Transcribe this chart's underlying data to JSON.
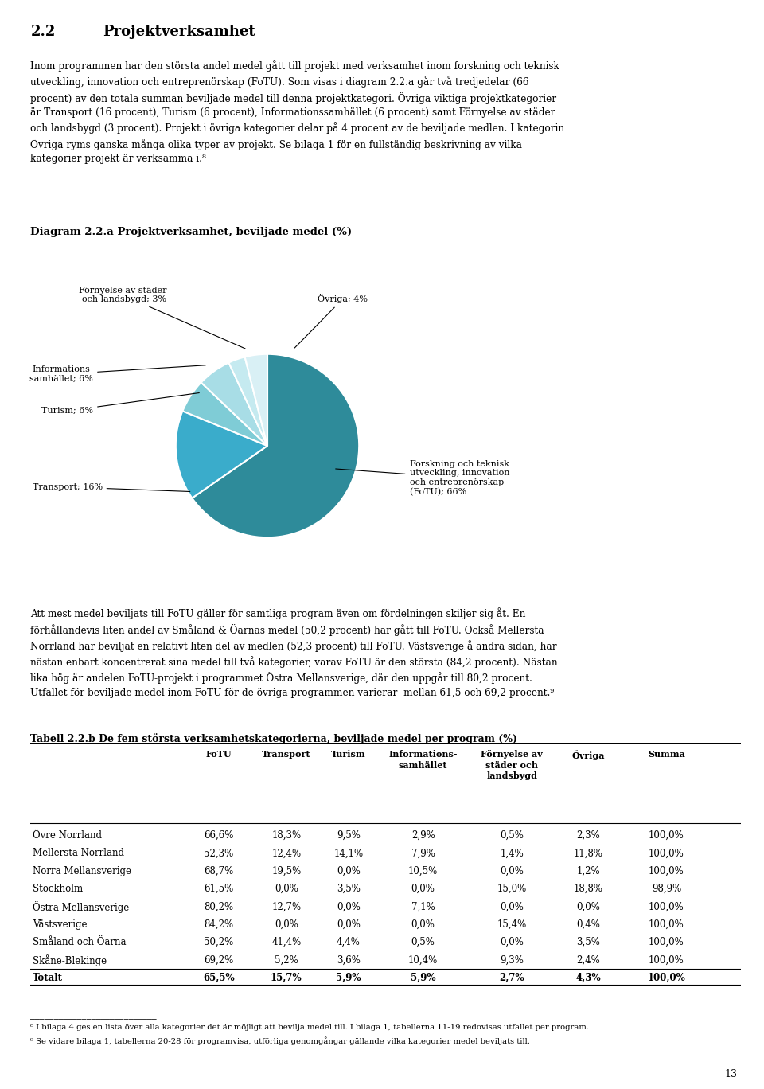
{
  "page_title_num": "2.2",
  "page_title_text": "Projektverksamhet",
  "body_text_1": "Inom programmen har den största andel medel gått till projekt med verksamhet inom forskning och teknisk\nutveckling, innovation och entreprenörskap (FoTU). Som visas i diagram 2.2.a går två tredjedelar (66\nprocent) av den totala summan beviljade medel till denna projektkategori. Övriga viktiga projektkategorier\när Transport (16 procent), Turism (6 procent), Informationssamhället (6 procent) samt Förnyelse av städer\noch landsbygd (3 procent). Projekt i övriga kategorier delar på 4 procent av de beviljade medlen. I kategorin\nÖvriga ryms ganska många olika typer av projekt. Se bilaga 1 för en fullständig beskrivning av vilka\nkategorier projekt är verksamma i.⁸",
  "diagram_title": "Diagram 2.2.a Projektverksamhet, beviljade medel (%)",
  "pie_slices": [
    66,
    16,
    6,
    6,
    3,
    4
  ],
  "pie_colors": [
    "#2e8b9a",
    "#3aaccb",
    "#7fccd6",
    "#a8dde6",
    "#c5eaf0",
    "#d9f0f5"
  ],
  "pie_labels": [
    "Forskning och teknisk\nutveckling, innovation\noch entreprenörskap\n(FoTU); 66%",
    "Transport; 16%",
    "Turism; 6%",
    "Informations-\nsamhället; 6%",
    "Förnyelse av städer\noch landsbygd; 3%",
    "Övriga; 4%"
  ],
  "body_text_2": "Att mest medel beviljats till FoTU gäller för samtliga program även om fördelningen skiljer sig åt. En\nförhållandevis liten andel av Småland & Öarnas medel (50,2 procent) har gått till FoTU. Också Mellersta\nNorrland har beviljat en relativt liten del av medlen (52,3 procent) till FoTU. Västsverige å andra sidan, har\nnästan enbart koncentrerat sina medel till två kategorier, varav FoTU är den största (84,2 procent). Nästan\nlika hög är andelen FoTU-projekt i programmet Östra Mellansverige, där den uppgår till 80,2 procent.\nUtfallet för beviljade medel inom FoTU för de övriga programmen varierar  mellan 61,5 och 69,2 procent.⁹",
  "table_title": "Tabell 2.2.b De fem största verksamhetskategorierna, beviljade medel per program (%)",
  "table_headers": [
    "",
    "FoTU",
    "Transport",
    "Turism",
    "Informations-\nsamhället",
    "Förnyelse av\nstäder och\nlandsbygd",
    "Övriga",
    "Summa"
  ],
  "table_rows": [
    [
      "Övre Norrland",
      "66,6%",
      "18,3%",
      "9,5%",
      "2,9%",
      "0,5%",
      "2,3%",
      "100,0%"
    ],
    [
      "Mellersta Norrland",
      "52,3%",
      "12,4%",
      "14,1%",
      "7,9%",
      "1,4%",
      "11,8%",
      "100,0%"
    ],
    [
      "Norra Mellansverige",
      "68,7%",
      "19,5%",
      "0,0%",
      "10,5%",
      "0,0%",
      "1,2%",
      "100,0%"
    ],
    [
      "Stockholm",
      "61,5%",
      "0,0%",
      "3,5%",
      "0,0%",
      "15,0%",
      "18,8%",
      "98,9%"
    ],
    [
      "Östra Mellansverige",
      "80,2%",
      "12,7%",
      "0,0%",
      "7,1%",
      "0,0%",
      "0,0%",
      "100,0%"
    ],
    [
      "Västsverige",
      "84,2%",
      "0,0%",
      "0,0%",
      "0,0%",
      "15,4%",
      "0,4%",
      "100,0%"
    ],
    [
      "Småland och Öarna",
      "50,2%",
      "41,4%",
      "4,4%",
      "0,5%",
      "0,0%",
      "3,5%",
      "100,0%"
    ],
    [
      "Skåne-Blekinge",
      "69,2%",
      "5,2%",
      "3,6%",
      "10,4%",
      "9,3%",
      "2,4%",
      "100,0%"
    ]
  ],
  "table_total": [
    "Totalt",
    "65,5%",
    "15,7%",
    "5,9%",
    "5,9%",
    "2,7%",
    "4,3%",
    "100,0%"
  ],
  "footnote_line": "___________________________",
  "footnote_8": "⁸ I bilaga 4 ges en lista över alla kategorier det är möjligt att bevilja medel till. I bilaga 1, tabellerna 11-19 redovisas utfallet per program.",
  "footnote_9": "⁹ Se vidare bilaga 1, tabellerna 20-28 för programvisa, utförliga genomgångar gällande vilka kategorier medel beviljats till.",
  "page_number": "13",
  "background_color": "#ffffff"
}
